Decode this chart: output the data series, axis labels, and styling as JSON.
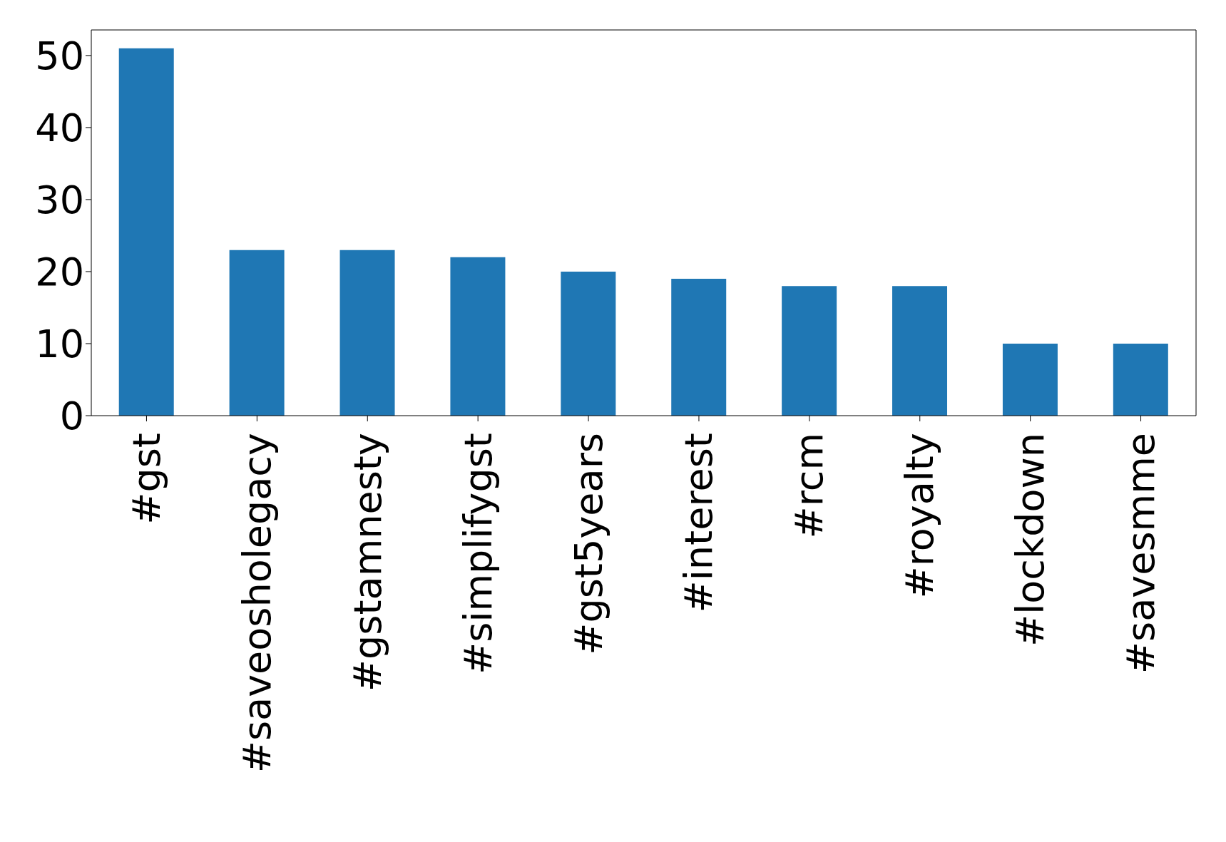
{
  "chart_data": {
    "type": "bar",
    "categories": [
      "#gst",
      "#saveosholegacy",
      "#gstamnesty",
      "#simplifygst",
      "#gst5years",
      "#interest",
      "#rcm",
      "#royalty",
      "#lockdown",
      "#savesmme"
    ],
    "values": [
      51,
      23,
      23,
      22,
      20,
      19,
      18,
      18,
      10,
      10
    ],
    "color": "#1f77b4",
    "ylim": [
      0,
      53.55
    ],
    "yticks": [
      0,
      10,
      20,
      30,
      40,
      50
    ]
  }
}
